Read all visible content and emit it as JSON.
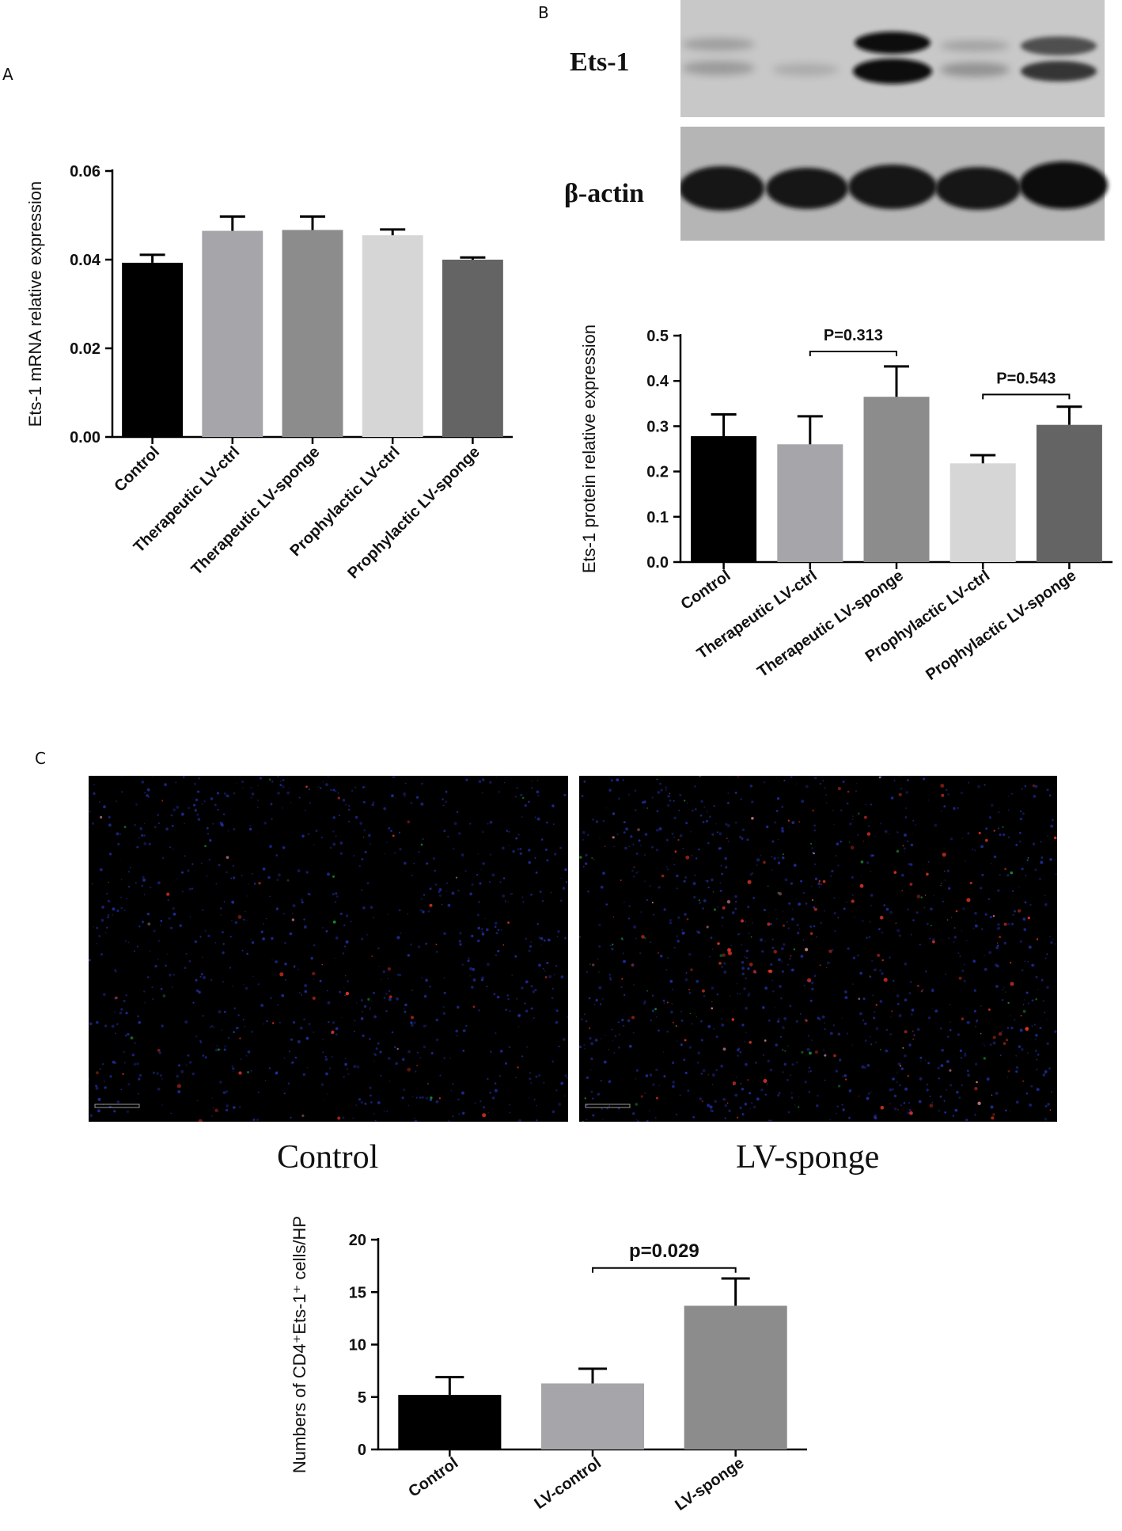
{
  "panel_labels": {
    "a": "A",
    "b": "B",
    "c": "C"
  },
  "colors": {
    "control": "#000000",
    "therapeutic_lv_ctrl": "#a6a6aa",
    "therapeutic_lv_sponge": "#8c8c8c",
    "prophylactic_lv_ctrl": "#d6d6d6",
    "prophylactic_lv_sponge": "#646464"
  },
  "blot": {
    "label_top": "Ets-1",
    "label_bottom": "β-actin"
  },
  "micro": {
    "left_caption": "Control",
    "right_caption": "LV-sponge"
  },
  "chart_data": [
    {
      "id": "A",
      "type": "bar",
      "categories": [
        "Control",
        "Therapeutic LV-ctrl",
        "Therapeutic LV-sponge",
        "Prophylactic LV-ctrl",
        "Prophylactic LV-sponge"
      ],
      "values": [
        0.0393,
        0.0465,
        0.0467,
        0.0455,
        0.04
      ],
      "errors": [
        0.0018,
        0.0032,
        0.003,
        0.0013,
        0.0005
      ],
      "colors": [
        "#000000",
        "#a6a6aa",
        "#8c8c8c",
        "#d6d6d6",
        "#646464"
      ],
      "ylabel": "Ets-1 mRNA relative expression",
      "ylim": [
        0,
        0.06
      ],
      "yticks": [
        "0.00",
        "0.02",
        "0.04",
        "0.06"
      ],
      "ytick_values": [
        0,
        0.02,
        0.04,
        0.06
      ]
    },
    {
      "id": "B",
      "type": "bar",
      "categories": [
        "Control",
        "Therapeutic LV-ctrl",
        "Therapeutic LV-sponge",
        "Prophylactic LV-ctrl",
        "Prophylactic LV-sponge"
      ],
      "values": [
        0.278,
        0.26,
        0.365,
        0.218,
        0.303
      ],
      "errors": [
        0.048,
        0.062,
        0.067,
        0.018,
        0.04
      ],
      "colors": [
        "#000000",
        "#a6a6aa",
        "#8c8c8c",
        "#d6d6d6",
        "#646464"
      ],
      "ylabel": "Ets-1 protein relative expression",
      "ylim": [
        0,
        0.5
      ],
      "yticks": [
        "0.0",
        "0.1",
        "0.2",
        "0.3",
        "0.4",
        "0.5"
      ],
      "ytick_values": [
        0,
        0.1,
        0.2,
        0.3,
        0.4,
        0.5
      ],
      "annotations": [
        {
          "text": "P=0.313",
          "from": 1,
          "to": 2,
          "y": 0.465
        },
        {
          "text": "P=0.543",
          "from": 3,
          "to": 4,
          "y": 0.37
        }
      ]
    },
    {
      "id": "C",
      "type": "bar",
      "categories": [
        "Control",
        "LV-control",
        "LV-sponge"
      ],
      "values": [
        5.2,
        6.3,
        13.7
      ],
      "errors": [
        1.7,
        1.4,
        2.6
      ],
      "colors": [
        "#000000",
        "#a6a6aa",
        "#8c8c8c"
      ],
      "ylabel": "Numbers of CD4⁺Ets-1⁺ cells/HP",
      "ylim": [
        0,
        20
      ],
      "yticks": [
        "0",
        "5",
        "10",
        "15",
        "20"
      ],
      "ytick_values": [
        0,
        5,
        10,
        15,
        20
      ],
      "annotations": [
        {
          "text": "p=0.029",
          "from": 1,
          "to": 2,
          "y": 17.3
        }
      ]
    }
  ]
}
